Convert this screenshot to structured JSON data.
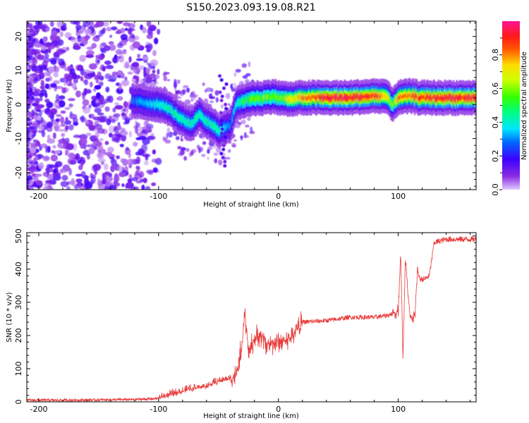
{
  "figure": {
    "title": "S150.2023.093.19.08.R21"
  },
  "chart_data": [
    {
      "type": "heatmap",
      "xlabel": "Height of straight line (km)",
      "ylabel": "Frequency (Hz)",
      "xlim": [
        -210,
        165
      ],
      "ylim": [
        -25,
        24.5
      ],
      "xticks": [
        -200,
        -100,
        0,
        100
      ],
      "yticks": [
        -20,
        -10,
        0,
        10,
        20
      ],
      "colorbar": {
        "label": "Normalized spectral amplitude",
        "range": [
          0,
          1
        ],
        "ticks": [
          0.0,
          0.2,
          0.4,
          0.6,
          0.8
        ],
        "colormap": "hsv (purple-blue-cyan-green-yellow-red-magenta)"
      },
      "ridge": {
        "x": [
          -120,
          -100,
          -92,
          -85,
          -78,
          -72,
          -66,
          -60,
          -54,
          -50,
          -46,
          -40,
          -35,
          -30,
          -25,
          -20,
          -10,
          -5,
          0,
          10,
          20,
          40,
          60,
          80,
          90,
          95,
          100,
          110,
          120,
          140,
          165
        ],
        "y": [
          1,
          0,
          -1,
          -3,
          -5,
          -6,
          -3,
          -5,
          -6,
          -8,
          -7,
          -6,
          0,
          1,
          1.5,
          1.8,
          2,
          2.5,
          2,
          1.5,
          2,
          2,
          2,
          2.5,
          2.5,
          0,
          2,
          2.5,
          2,
          2,
          2
        ],
        "amplitude": [
          0.3,
          0.4,
          0.45,
          0.45,
          0.45,
          0.45,
          0.45,
          0.45,
          0.45,
          0.45,
          0.4,
          0.3,
          0.4,
          0.5,
          0.55,
          0.6,
          0.6,
          0.55,
          0.6,
          0.7,
          0.8,
          0.95,
          0.95,
          0.9,
          0.75,
          0.55,
          0.8,
          0.85,
          0.9,
          0.95,
          0.9
        ]
      }
    },
    {
      "type": "line",
      "xlabel": "Height of straight line (km)",
      "ylabel": "SNR (10 * v/v)",
      "xlim": [
        -210,
        165
      ],
      "ylim": [
        0,
        510
      ],
      "xticks": [
        -200,
        -100,
        0,
        100
      ],
      "yticks": [
        0,
        100,
        200,
        300,
        400,
        500
      ],
      "color": "#e83a3a",
      "series": [
        {
          "x": [
            -210,
            -180,
            -150,
            -120,
            -100,
            -90,
            -80,
            -70,
            -60,
            -50,
            -40,
            -35,
            -30,
            -28,
            -25,
            -20,
            -15,
            -10,
            0,
            10,
            15,
            20,
            40,
            60,
            80,
            90,
            95,
            100,
            102,
            104,
            106,
            110,
            114,
            116,
            118,
            122,
            126,
            128,
            130,
            140,
            165
          ],
          "y": [
            5,
            5,
            6,
            7,
            10,
            20,
            30,
            40,
            45,
            60,
            70,
            80,
            180,
            270,
            150,
            190,
            200,
            175,
            180,
            190,
            220,
            240,
            245,
            255,
            255,
            260,
            265,
            275,
            450,
            130,
            440,
            250,
            260,
            400,
            370,
            370,
            380,
            430,
            480,
            490,
            490
          ]
        }
      ]
    }
  ]
}
